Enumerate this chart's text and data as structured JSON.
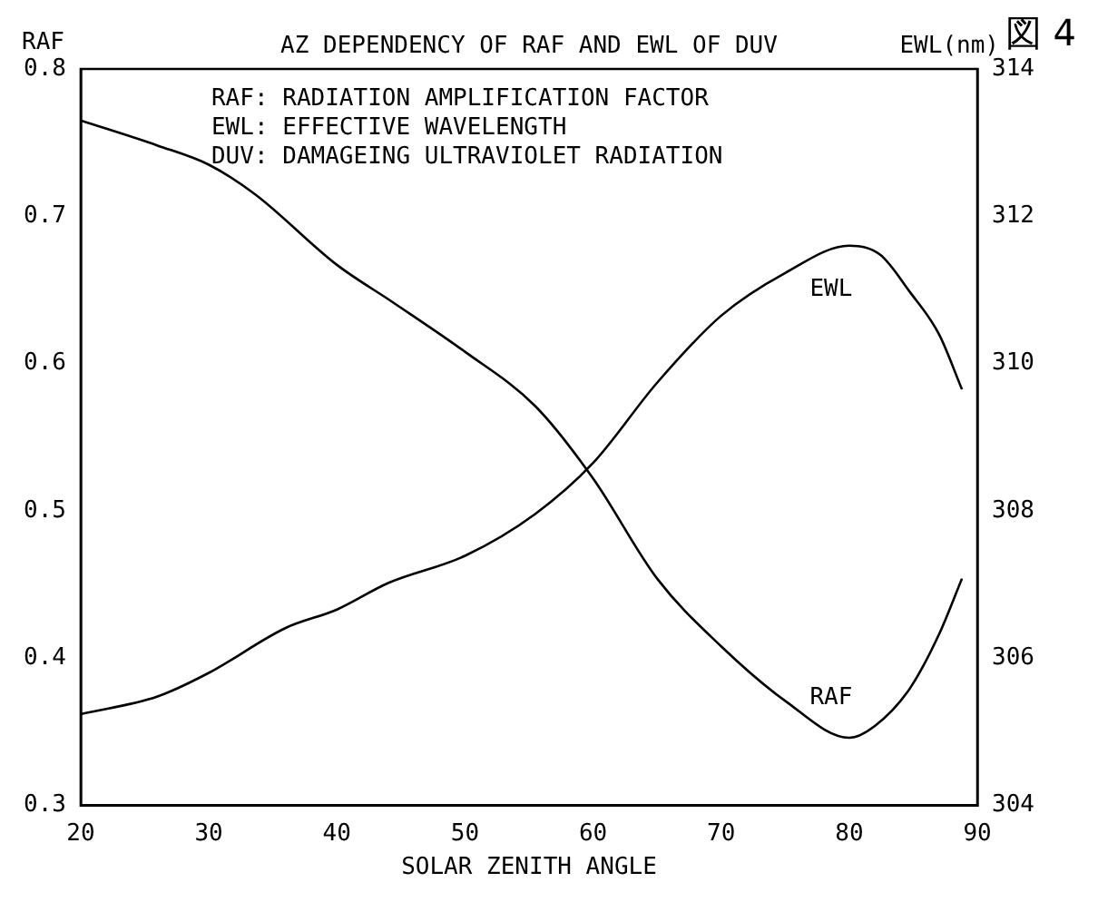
{
  "chart_data": {
    "type": "line",
    "title": "AZ DEPENDENCY OF RAF AND EWL OF DUV",
    "xlabel": "SOLAR ZENITH ANGLE",
    "ylabel": "RAF",
    "y2label": "EWL(nm)",
    "xlim": [
      20,
      90
    ],
    "xticks": [
      20,
      30,
      40,
      50,
      60,
      70,
      80,
      90
    ],
    "ylim": [
      0.3,
      0.8
    ],
    "yticks": [
      0.3,
      0.4,
      0.5,
      0.6,
      0.7,
      0.8
    ],
    "y2lim": [
      304,
      314
    ],
    "y2ticks": [
      304,
      306,
      308,
      310,
      312,
      314
    ],
    "series": [
      {
        "name": "RAF",
        "color": "#000000",
        "x": [
          20,
          26,
          30,
          33.6,
          40,
          44.3,
          50,
          55.5,
          60,
          65,
          70,
          75,
          80,
          82,
          84.7,
          87,
          88.8
        ],
        "values": [
          0.765,
          0.748,
          0.735,
          0.715,
          0.667,
          0.642,
          0.608,
          0.571,
          0.522,
          0.454,
          0.408,
          0.371,
          0.346,
          0.354,
          0.379,
          0.416,
          0.454
        ]
      },
      {
        "name": "EWL",
        "color": "#000000",
        "axis": "y2",
        "x": [
          20,
          26,
          30,
          36,
          40,
          44,
          50,
          55.5,
          60,
          65,
          70,
          75,
          80,
          82.4,
          84.7,
          87,
          88.8
        ],
        "values": [
          305.24,
          305.48,
          305.8,
          306.41,
          306.66,
          307.02,
          307.39,
          307.96,
          308.65,
          309.74,
          310.65,
          311.23,
          311.6,
          311.48,
          310.98,
          310.4,
          309.65
        ]
      }
    ],
    "annotations": [
      "RAF: RADIATION AMPLIFICATION FACTOR",
      "EWL: EFFECTIVE WAVELENGTH",
      "DUV: DAMAGEING ULTRAVIOLET RADIATION",
      "図 4"
    ],
    "legend": false,
    "grid": false
  }
}
